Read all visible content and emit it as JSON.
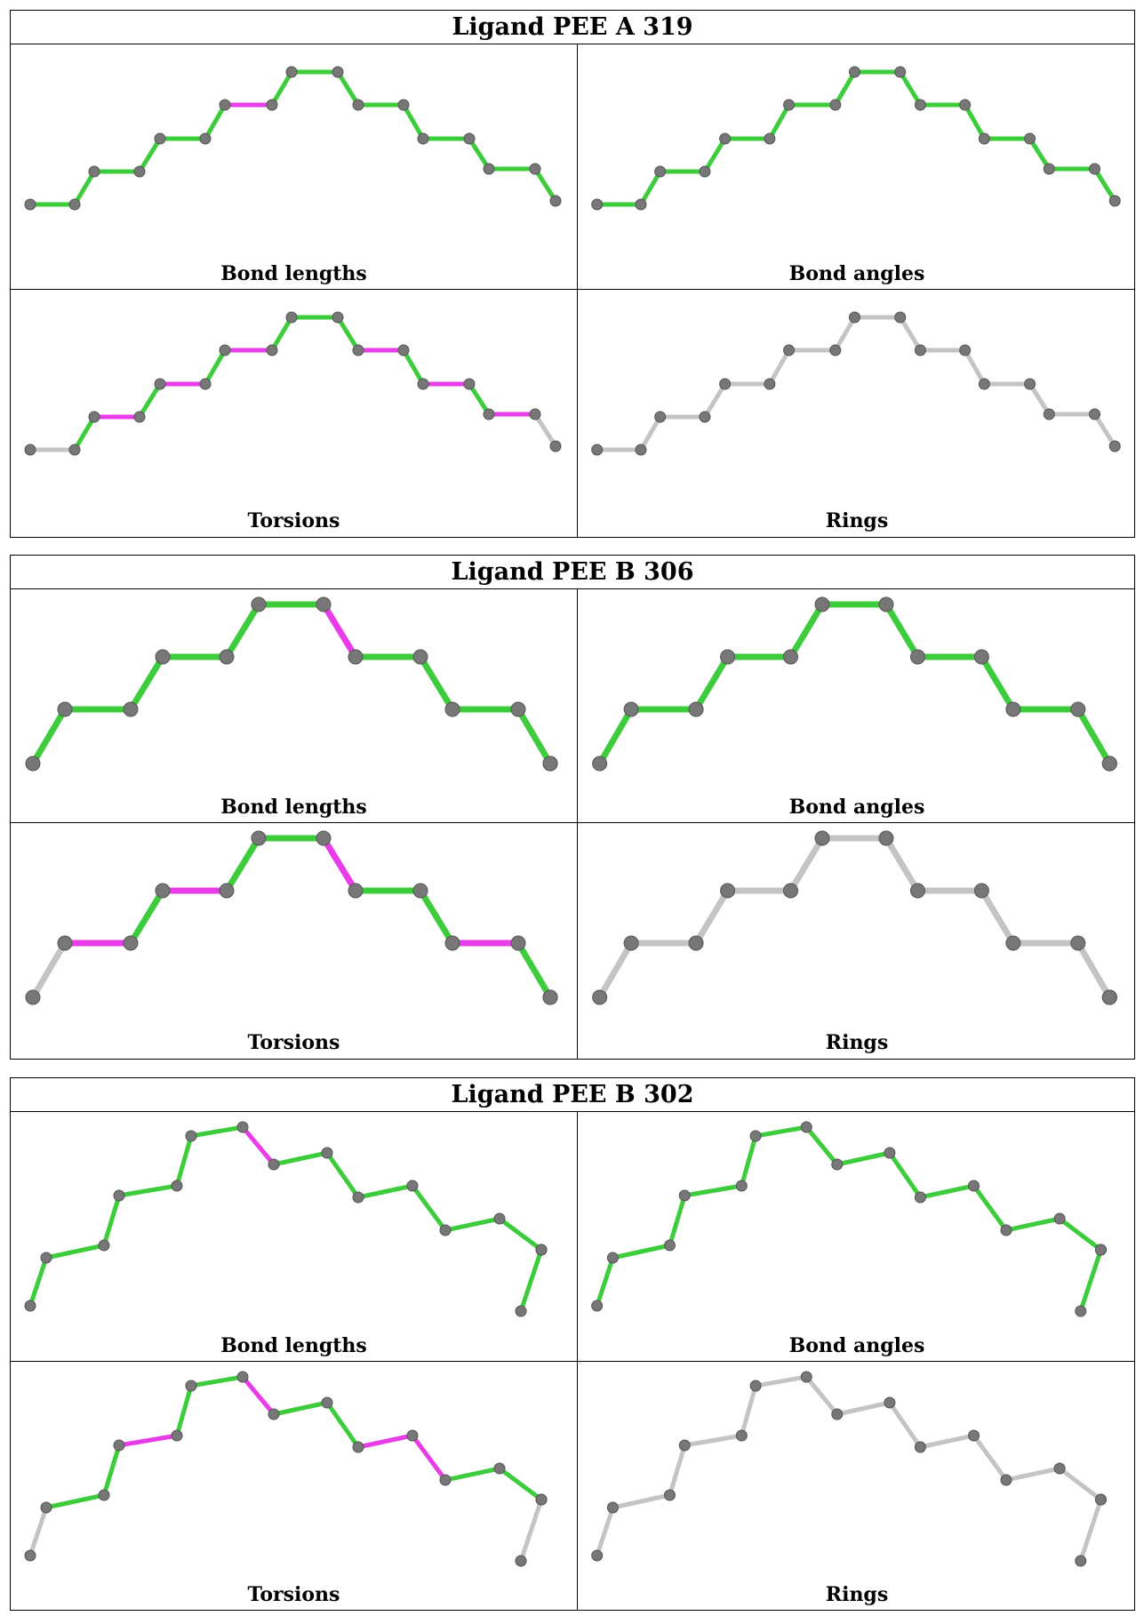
{
  "colors": {
    "green": "#3ccc3c",
    "magenta": "#e83ce8",
    "gray": "#c4c4c4",
    "atom": "#777777"
  },
  "labels": {
    "bond_lengths": "Bond lengths",
    "bond_angles": "Bond angles",
    "torsions": "Torsions",
    "rings": "Rings"
  },
  "ligands": [
    {
      "title": "Ligand PEE A 319",
      "bonds": {
        "bond_lengths": [
          "green",
          "green",
          "green",
          "green",
          "green",
          "green",
          "magenta",
          "green",
          "green",
          "green",
          "green",
          "green",
          "green",
          "green",
          "green",
          "green"
        ],
        "bond_angles": [
          "green",
          "green",
          "green",
          "green",
          "green",
          "green",
          "green",
          "green",
          "green",
          "green",
          "green",
          "green",
          "green",
          "green",
          "green",
          "green"
        ],
        "torsions": [
          "gray",
          "green",
          "magenta",
          "green",
          "magenta",
          "green",
          "magenta",
          "green",
          "green",
          "green",
          "magenta",
          "green",
          "magenta",
          "green",
          "magenta",
          "gray"
        ],
        "rings": [
          "gray",
          "gray",
          "gray",
          "gray",
          "gray",
          "gray",
          "gray",
          "gray",
          "gray",
          "gray",
          "gray",
          "gray",
          "gray",
          "gray",
          "gray",
          "gray"
        ]
      }
    },
    {
      "title": "Ligand PEE B 306",
      "bonds": {
        "bond_lengths": [
          "green",
          "green",
          "green",
          "green",
          "green",
          "green",
          "magenta",
          "green",
          "green",
          "green",
          "green",
          "green",
          "green"
        ],
        "bond_angles": [
          "green",
          "green",
          "green",
          "green",
          "green",
          "green",
          "green",
          "green",
          "green",
          "green",
          "green",
          "green",
          "green"
        ],
        "torsions": [
          "gray",
          "magenta",
          "green",
          "magenta",
          "green",
          "green",
          "magenta",
          "green",
          "green",
          "magenta",
          "green",
          "magenta",
          "gray"
        ],
        "rings": [
          "gray",
          "gray",
          "gray",
          "gray",
          "gray",
          "gray",
          "gray",
          "gray",
          "gray",
          "gray",
          "gray",
          "gray",
          "gray"
        ]
      }
    },
    {
      "title": "Ligand PEE B 302",
      "bonds": {
        "bond_lengths": [
          "green",
          "green",
          "green",
          "green",
          "green",
          "green",
          "magenta",
          "green",
          "green",
          "green",
          "green",
          "green",
          "green",
          "green",
          "green",
          "green"
        ],
        "bond_angles": [
          "green",
          "green",
          "green",
          "green",
          "green",
          "green",
          "green",
          "green",
          "green",
          "green",
          "green",
          "green",
          "green",
          "green",
          "green",
          "green"
        ],
        "torsions": [
          "gray",
          "green",
          "green",
          "magenta",
          "green",
          "green",
          "magenta",
          "green",
          "green",
          "magenta",
          "magenta",
          "green",
          "green",
          "green",
          "magenta",
          "gray"
        ],
        "rings": [
          "gray",
          "gray",
          "gray",
          "gray",
          "gray",
          "gray",
          "gray",
          "gray",
          "gray",
          "gray",
          "gray",
          "gray",
          "gray",
          "gray",
          "gray",
          "gray"
        ]
      }
    }
  ]
}
